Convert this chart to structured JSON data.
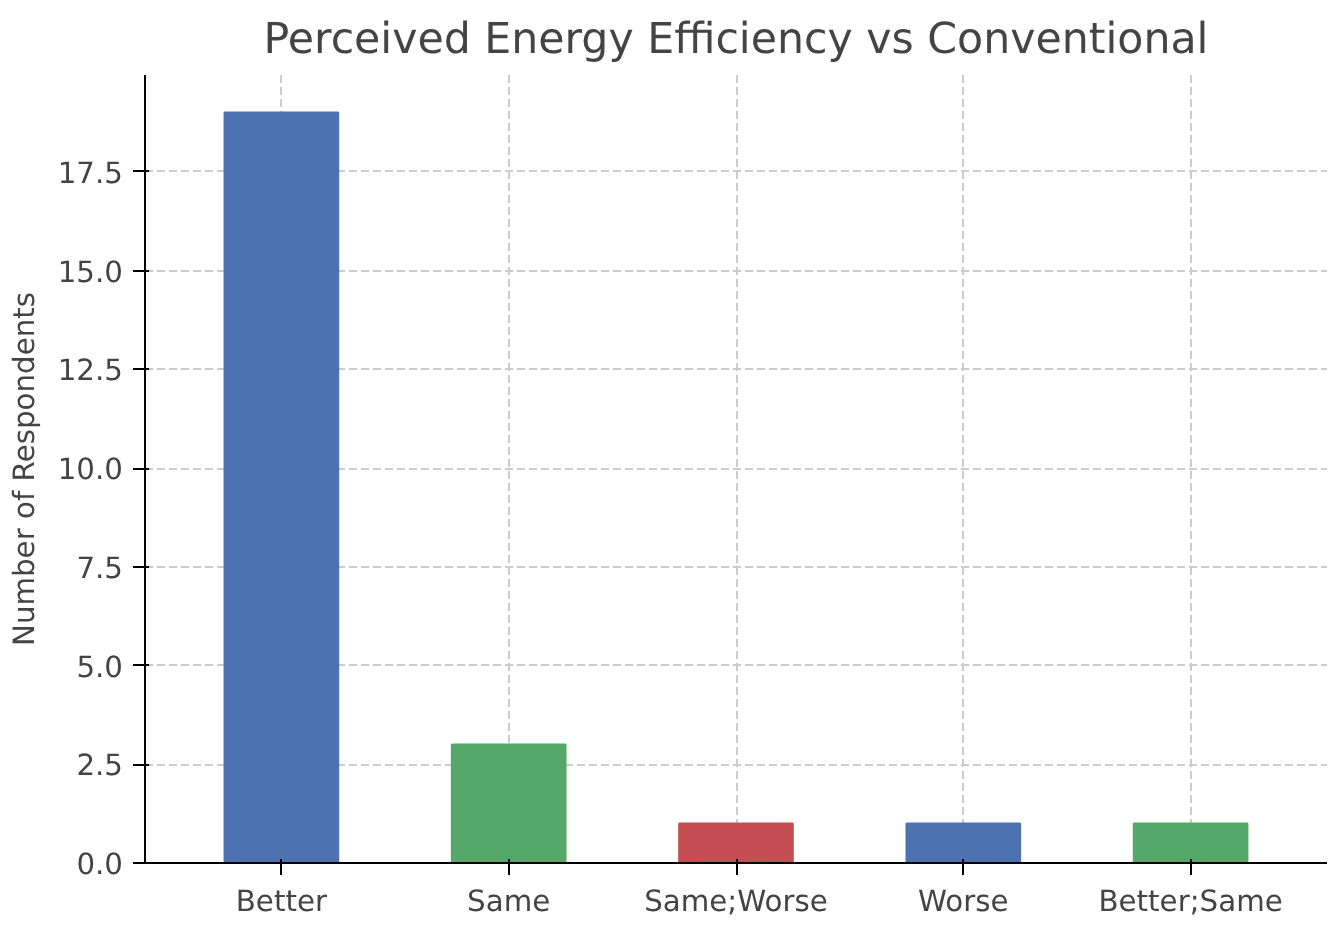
{
  "chart_data": {
    "type": "bar",
    "title": "Perceived Energy Efficiency vs Conventional",
    "ylabel": "Number of Respondents",
    "categories": [
      "Better",
      "Same",
      "Same;Worse",
      "Worse",
      "Better;Same"
    ],
    "values": [
      19,
      3,
      1,
      1,
      1
    ],
    "colors": [
      "#4c72b0",
      "#55a868",
      "#c44e52",
      "#4c72b0",
      "#55a868"
    ],
    "ylim": [
      0,
      19.95
    ],
    "yticks": [
      {
        "value": 0,
        "label": "0.0"
      },
      {
        "value": 2.5,
        "label": "2.5"
      },
      {
        "value": 5,
        "label": "5.0"
      },
      {
        "value": 7.5,
        "label": "7.5"
      },
      {
        "value": 10,
        "label": "10.0"
      },
      {
        "value": 12.5,
        "label": "12.5"
      },
      {
        "value": 15,
        "label": "15.0"
      },
      {
        "value": 17.5,
        "label": "17.5"
      }
    ],
    "grid": true
  }
}
